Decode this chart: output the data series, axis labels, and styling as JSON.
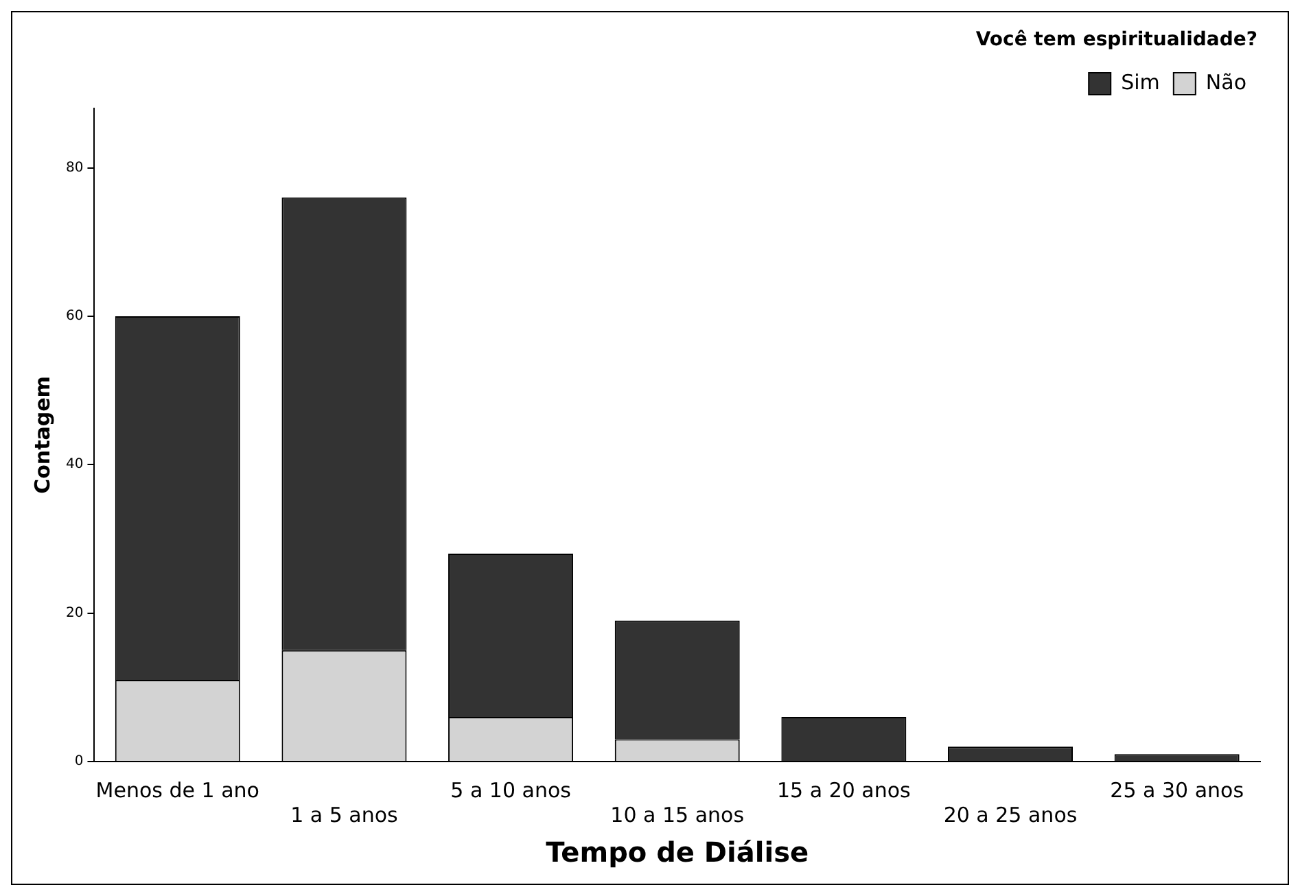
{
  "chart_data": {
    "type": "bar",
    "xlabel": "Tempo de Diálise",
    "ylabel": "Contagem",
    "legend_title": "Você tem espiritualidade?",
    "categories": [
      "Menos de 1 ano",
      "1 a 5 anos",
      "5 a 10 anos",
      "10 a 15 anos",
      "15 a 20 anos",
      "20 a 25 anos",
      "25 a 30 anos"
    ],
    "series": [
      {
        "name": "Não",
        "color": "#d3d3d3",
        "values": [
          11,
          15,
          6,
          3,
          0,
          0,
          0
        ]
      },
      {
        "name": "Sim",
        "color": "#333333",
        "values": [
          49,
          61,
          22,
          16,
          6,
          2,
          1
        ]
      }
    ],
    "stacked": true,
    "ylim": [
      0,
      88
    ],
    "yticks": [
      0,
      20,
      40,
      60,
      80
    ],
    "grid": false,
    "legend": "top right"
  }
}
